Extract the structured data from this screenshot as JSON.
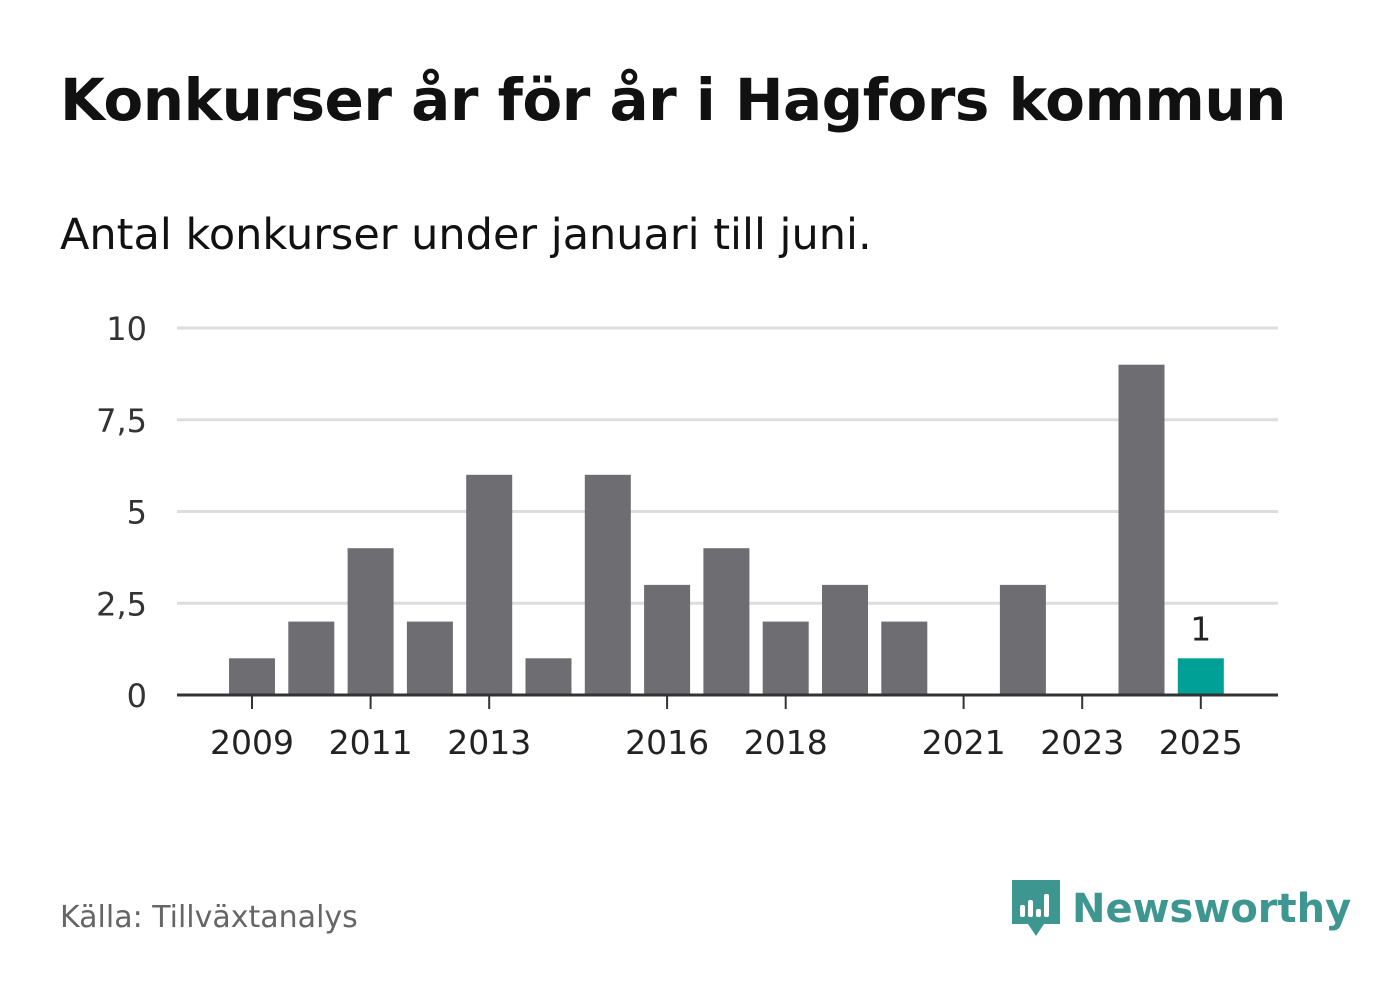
{
  "title": "Konkurser år för år i Hagfors kommun",
  "subtitle": "Antal konkurser under januari till juni.",
  "source": "Källa: Tillväxtanalys",
  "brand": {
    "name": "Newsworthy",
    "icon": "newsworthy-logo-icon",
    "color": "#3e9691"
  },
  "chart_data": {
    "type": "bar",
    "categories": [
      "2009",
      "2010",
      "2011",
      "2012",
      "2013",
      "2014",
      "2015",
      "2016",
      "2017",
      "2018",
      "2019",
      "2020",
      "2021",
      "2022",
      "2023",
      "2024",
      "2025"
    ],
    "values": [
      1,
      2,
      4,
      2,
      6,
      1,
      6,
      3,
      4,
      2,
      3,
      2,
      0,
      3,
      0,
      9,
      1
    ],
    "x_tick_labels": [
      "2009",
      "2011",
      "2013",
      "2016",
      "2018",
      "2021",
      "2023",
      "2025"
    ],
    "y_ticks": [
      0,
      2.5,
      5,
      7.5,
      10
    ],
    "y_tick_labels": [
      "0",
      "2,5",
      "5",
      "7,5",
      "10"
    ],
    "ylim": [
      0,
      10
    ],
    "grid": true,
    "highlight": {
      "category": "2025",
      "label": "1"
    },
    "colors": {
      "bar": "#6e6d72",
      "highlight": "#00a096",
      "grid": "#dddddd",
      "axis": "#333333"
    }
  }
}
